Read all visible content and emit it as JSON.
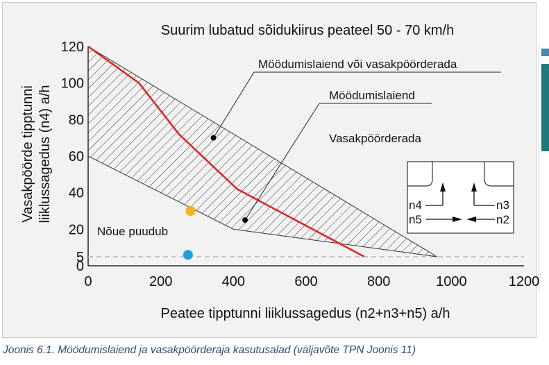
{
  "chart_data": {
    "type": "area",
    "title": "Suurim lubatud sõidukiirus peateel 50 - 70 km/h",
    "xlabel": "Peatee tipptunni liiklussagedus (n2+n3+n5) a/h",
    "ylabel_line1": "Vasakpöörde tipptunni",
    "ylabel_line2": "liiklussagedus (n4) a/h",
    "xlim": [
      0,
      1200
    ],
    "ylim": [
      0,
      120
    ],
    "x_ticks": [
      "0",
      "200",
      "400",
      "600",
      "800",
      "1000",
      "1200"
    ],
    "y_ticks": [
      {
        "value": 0,
        "label": "0"
      },
      {
        "value": 5,
        "label": "5"
      },
      {
        "value": 20,
        "label": "20"
      },
      {
        "value": 40,
        "label": "40"
      },
      {
        "value": 60,
        "label": "60"
      },
      {
        "value": 80,
        "label": "80"
      },
      {
        "value": 100,
        "label": "100"
      },
      {
        "value": 120,
        "label": "120"
      }
    ],
    "hatched_region": [
      {
        "x": 0,
        "y": 120
      },
      {
        "x": 960,
        "y": 5
      },
      {
        "x": 400,
        "y": 20
      },
      {
        "x": 0,
        "y": 60
      }
    ],
    "threshold_line": [
      {
        "x": 0,
        "y": 120
      },
      {
        "x": 140,
        "y": 100
      },
      {
        "x": 250,
        "y": 72
      },
      {
        "x": 410,
        "y": 42
      },
      {
        "x": 760,
        "y": 5
      }
    ],
    "dashed_line_y": 5,
    "points": [
      {
        "x": 345,
        "y": 70,
        "color": "#000000",
        "r": 4
      },
      {
        "x": 432,
        "y": 25,
        "color": "#000000",
        "r": 4
      },
      {
        "x": 282,
        "y": 30,
        "color": "#f5b417",
        "r": 7
      },
      {
        "x": 275,
        "y": 6,
        "color": "#1a9fe0",
        "r": 7
      }
    ],
    "annotations": {
      "both": {
        "text": "Möödumislaiend või vasakpöörderada",
        "point": {
          "x": 345,
          "y": 70
        }
      },
      "passing": {
        "text": "Möödumislaiend",
        "point": {
          "x": 432,
          "y": 25
        }
      },
      "left_lane": {
        "text": "Vasakpöörderada"
      },
      "none": {
        "text": "Nõue puudub"
      }
    },
    "inset": {
      "labels": {
        "n4": "n4",
        "n3": "n3",
        "n5": "n5",
        "n2": "n2"
      }
    },
    "colors": {
      "threshold": "#e02020",
      "hatch": "#333333",
      "axis": "#222222",
      "frame_bg": "#f2f2f2"
    }
  },
  "caption": "Joonis 6.1. Möödumislaiend ja vasakpöörderaja kasutusalad (väljavõte TPN Joonis 11)"
}
